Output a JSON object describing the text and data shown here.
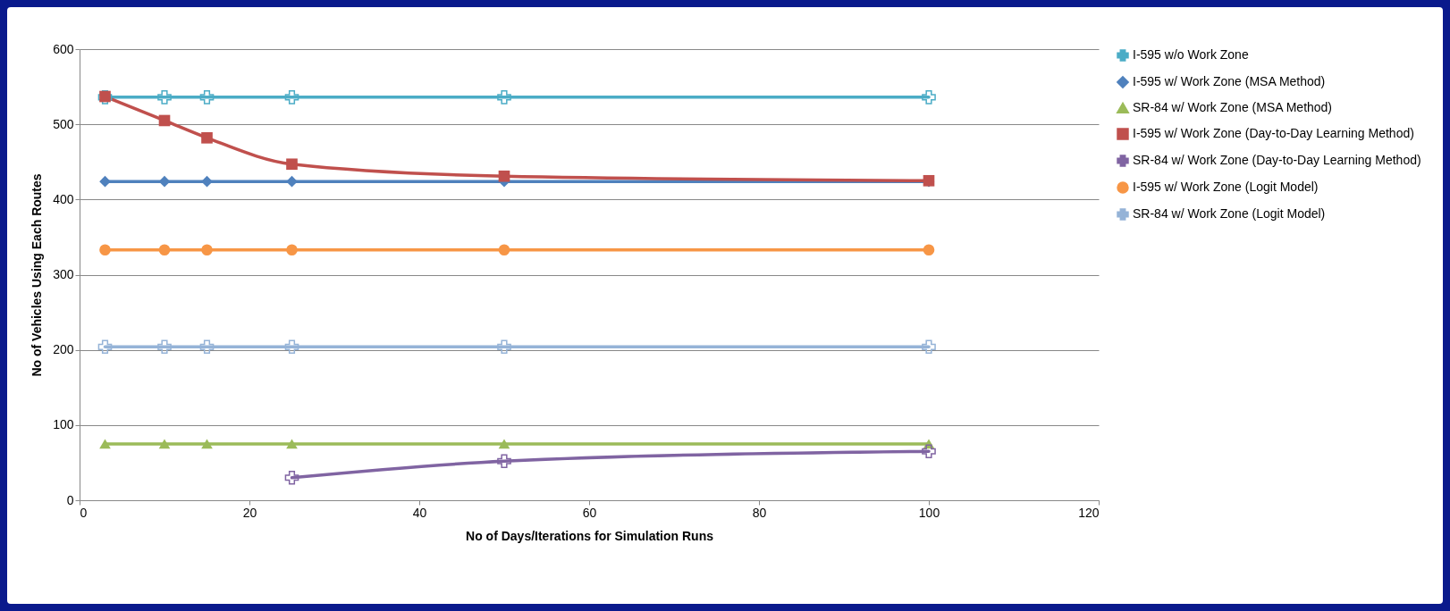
{
  "chart_data": {
    "type": "line",
    "xlabel": "No of Days/Iterations for Simulation Runs",
    "ylabel": "No of Vehicles Using Each Routes",
    "xlim": [
      0,
      120
    ],
    "xticks": [
      0,
      20,
      40,
      60,
      80,
      100,
      120
    ],
    "ylim": [
      0,
      600
    ],
    "yticks": [
      0,
      100,
      200,
      300,
      400,
      500,
      600
    ],
    "grid": "y",
    "legend": "right",
    "series": [
      {
        "name": "I-595 w/o Work Zone",
        "color": "#4bacc6",
        "marker": "cross",
        "x": [
          3,
          10,
          15,
          25,
          50,
          100
        ],
        "values": [
          536,
          536,
          536,
          536,
          536,
          536
        ]
      },
      {
        "name": "I-595 w/ Work Zone (MSA Method)",
        "color": "#4f81bd",
        "marker": "diamond",
        "x": [
          3,
          10,
          15,
          25,
          50,
          100
        ],
        "values": [
          424,
          424,
          424,
          424,
          424,
          424
        ]
      },
      {
        "name": "SR-84 w/ Work Zone (MSA Method)",
        "color": "#9bbb59",
        "marker": "triangle",
        "x": [
          3,
          10,
          15,
          25,
          50,
          100
        ],
        "values": [
          75,
          75,
          75,
          75,
          75,
          75
        ]
      },
      {
        "name": "I-595 w/ Work Zone (Day-to-Day Learning Method)",
        "color": "#c0504d",
        "marker": "square",
        "x": [
          3,
          10,
          15,
          25,
          50,
          100
        ],
        "values": [
          537,
          505,
          482,
          447,
          431,
          425
        ]
      },
      {
        "name": "SR-84 w/ Work Zone (Day-to-Day Learning Method)",
        "color": "#8064a2",
        "marker": "cross",
        "x": [
          25,
          50,
          100
        ],
        "values": [
          30,
          52,
          65
        ]
      },
      {
        "name": "I-595 w/ Work Zone (Logit Model)",
        "color": "#f79646",
        "marker": "circle",
        "x": [
          3,
          10,
          15,
          25,
          50,
          100
        ],
        "values": [
          333,
          333,
          333,
          333,
          333,
          333
        ]
      },
      {
        "name": "SR-84 w/ Work Zone (Logit Model)",
        "color": "#95b3d7",
        "marker": "cross",
        "x": [
          3,
          10,
          15,
          25,
          50,
          100
        ],
        "values": [
          204,
          204,
          204,
          204,
          204,
          204
        ]
      }
    ]
  }
}
